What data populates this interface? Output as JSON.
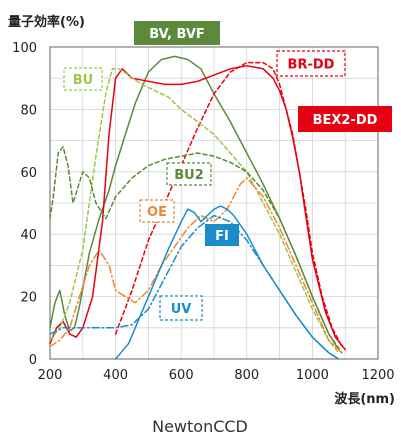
{
  "chart_data": {
    "type": "line",
    "ylabel": "量子効率(%)",
    "xlabel": "波長(nm)",
    "caption": "NewtonCCD",
    "xlim": [
      200,
      1200
    ],
    "ylim": [
      0,
      100
    ],
    "xticks": [
      200,
      400,
      600,
      800,
      1000,
      1200
    ],
    "yticks": [
      0,
      20,
      40,
      60,
      80,
      100
    ],
    "grid": true,
    "series": [
      {
        "name": "BV, BVF",
        "color": "#5a8a3a",
        "dash": "solid",
        "label_style": "filled",
        "x": [
          200,
          215,
          230,
          245,
          260,
          275,
          290,
          320,
          350,
          380,
          400,
          430,
          460,
          500,
          540,
          580,
          620,
          660,
          700,
          750,
          800,
          850,
          900,
          950,
          1000,
          1050,
          1080
        ],
        "y": [
          10,
          18,
          22,
          14,
          9,
          10,
          17,
          34,
          45,
          54,
          62,
          72,
          82,
          92,
          96,
          97,
          96,
          93,
          85,
          76,
          66,
          56,
          45,
          33,
          20,
          8,
          3
        ]
      },
      {
        "name": "BR-DD",
        "color": "#e60012",
        "dash": "dashed",
        "label_style": "dashed-box",
        "x": [
          400,
          450,
          500,
          550,
          600,
          650,
          700,
          750,
          800,
          850,
          880,
          900,
          920,
          940,
          960,
          980,
          1000,
          1030,
          1060,
          1090
        ],
        "y": [
          8,
          22,
          38,
          50,
          62,
          74,
          85,
          92,
          95,
          95,
          93,
          88,
          80,
          72,
          60,
          48,
          34,
          20,
          10,
          4
        ]
      },
      {
        "name": "BEX2-DD",
        "color": "#e60012",
        "dash": "solid",
        "label_style": "filled",
        "x": [
          200,
          220,
          240,
          260,
          280,
          300,
          330,
          360,
          380,
          400,
          420,
          450,
          500,
          550,
          600,
          650,
          700,
          750,
          800,
          850,
          880,
          900,
          920,
          940,
          960,
          980,
          1000,
          1040,
          1070,
          1100
        ],
        "y": [
          5,
          10,
          12,
          8,
          7,
          10,
          20,
          44,
          72,
          90,
          93,
          90,
          89,
          88,
          88,
          89,
          91,
          93,
          94,
          93,
          90,
          86,
          80,
          71,
          60,
          46,
          32,
          15,
          7,
          3
        ]
      },
      {
        "name": "BU",
        "color": "#9dc74a",
        "dash": "dashed",
        "label_style": "dashed-box",
        "x": [
          200,
          230,
          260,
          300,
          340,
          370,
          390,
          410,
          440,
          480,
          520,
          560,
          600,
          650,
          700,
          750,
          800,
          850,
          900,
          950,
          1000,
          1050,
          1080
        ],
        "y": [
          6,
          10,
          18,
          35,
          65,
          85,
          93,
          93,
          91,
          88,
          86,
          84,
          80,
          76,
          72,
          66,
          60,
          50,
          40,
          28,
          16,
          6,
          2
        ]
      },
      {
        "name": "BU2",
        "color": "#5a8a3a",
        "dash": "dashed",
        "label_style": "dashed-box",
        "x": [
          200,
          210,
          225,
          240,
          255,
          270,
          285,
          300,
          320,
          340,
          370,
          400,
          450,
          500,
          550,
          600,
          650,
          700,
          750,
          800,
          850,
          900,
          950,
          1000,
          1050,
          1090
        ],
        "y": [
          45,
          52,
          66,
          68,
          62,
          50,
          55,
          60,
          58,
          50,
          45,
          52,
          58,
          62,
          64,
          65,
          66,
          65,
          63,
          60,
          54,
          45,
          33,
          20,
          8,
          2
        ]
      },
      {
        "name": "OE",
        "color": "#ee8833",
        "dash": "dashdot",
        "label_style": "dashed-box",
        "x": [
          200,
          230,
          260,
          290,
          320,
          350,
          380,
          400,
          430,
          460,
          500,
          540,
          580,
          620,
          660,
          700,
          740,
          780,
          800,
          850,
          900,
          950,
          1000,
          1050,
          1090
        ],
        "y": [
          4,
          6,
          10,
          20,
          30,
          35,
          30,
          22,
          20,
          18,
          22,
          30,
          36,
          42,
          46,
          44,
          48,
          56,
          58,
          52,
          42,
          30,
          18,
          6,
          2
        ]
      },
      {
        "name": "FI",
        "color": "#1a8ccb",
        "dash": "solid",
        "label_style": "filled",
        "x": [
          400,
          440,
          480,
          520,
          560,
          600,
          620,
          640,
          660,
          680,
          700,
          720,
          740,
          760,
          800,
          850,
          900,
          950,
          1000,
          1050,
          1080
        ],
        "y": [
          0,
          5,
          15,
          25,
          35,
          44,
          48,
          47,
          44,
          46,
          48,
          49,
          48,
          46,
          40,
          30,
          22,
          14,
          7,
          2,
          0
        ]
      },
      {
        "name": "UV",
        "color": "#1a8ccb",
        "dash": "dashdot",
        "label_style": "dashed-box",
        "x": [
          200,
          220,
          240,
          270,
          300,
          350,
          400,
          450,
          500,
          550,
          600,
          650,
          700,
          750,
          800,
          850,
          900,
          950,
          1000,
          1050,
          1080
        ],
        "y": [
          8,
          9,
          10,
          10,
          10,
          10,
          10,
          11,
          16,
          26,
          36,
          42,
          46,
          44,
          38,
          30,
          22,
          14,
          7,
          2,
          0
        ]
      }
    ]
  }
}
